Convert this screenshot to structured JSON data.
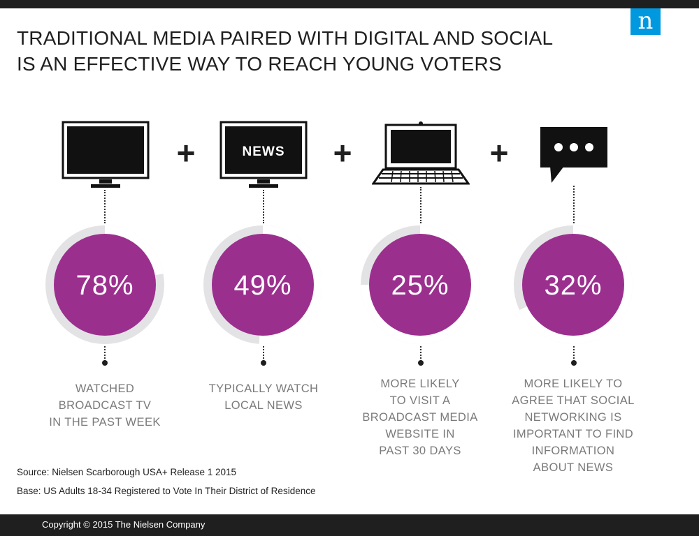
{
  "header": {
    "title_lines": [
      "TRADITIONAL MEDIA PAIRED WITH DIGITAL AND SOCIAL",
      "IS AN EFFECTIVE WAY TO REACH YOUNG VOTERS"
    ],
    "logo_letter": "n",
    "logo_color": "#0099e0"
  },
  "icons": {
    "news_text": "NEWS",
    "plus_symbol": "+"
  },
  "stats": [
    {
      "percent": 78,
      "value_text": "78%",
      "icon": "tv-icon",
      "label_lines": [
        "WATCHED",
        "BROADCAST TV",
        "IN THE PAST WEEK"
      ]
    },
    {
      "percent": 49,
      "value_text": "49%",
      "icon": "news-tv-icon",
      "label_lines": [
        "TYPICALLY WATCH",
        "LOCAL NEWS"
      ]
    },
    {
      "percent": 25,
      "value_text": "25%",
      "icon": "laptop-icon",
      "label_lines": [
        "MORE LIKELY",
        "TO VISIT A",
        "BROADCAST MEDIA",
        "WEBSITE IN",
        "PAST 30 DAYS"
      ]
    },
    {
      "percent": 32,
      "value_text": "32%",
      "icon": "chat-bubble-icon",
      "label_lines": [
        "MORE LIKELY TO",
        "AGREE THAT SOCIAL",
        "NETWORKING IS",
        "IMPORTANT TO FIND",
        "INFORMATION",
        "ABOUT NEWS"
      ]
    }
  ],
  "colors": {
    "accent": "#9b2f8e",
    "ring_track": "#e3e3e5",
    "ring_fill": "#ffffff",
    "label": "#7a7a7a"
  },
  "notes": {
    "source": "Source: Nielsen  Scarborough USA+ Release 1 2015",
    "base": "Base: US Adults 18-34 Registered to Vote In Their District of Residence"
  },
  "footer": {
    "copyright": "Copyright © 2015 The Nielsen Company"
  }
}
